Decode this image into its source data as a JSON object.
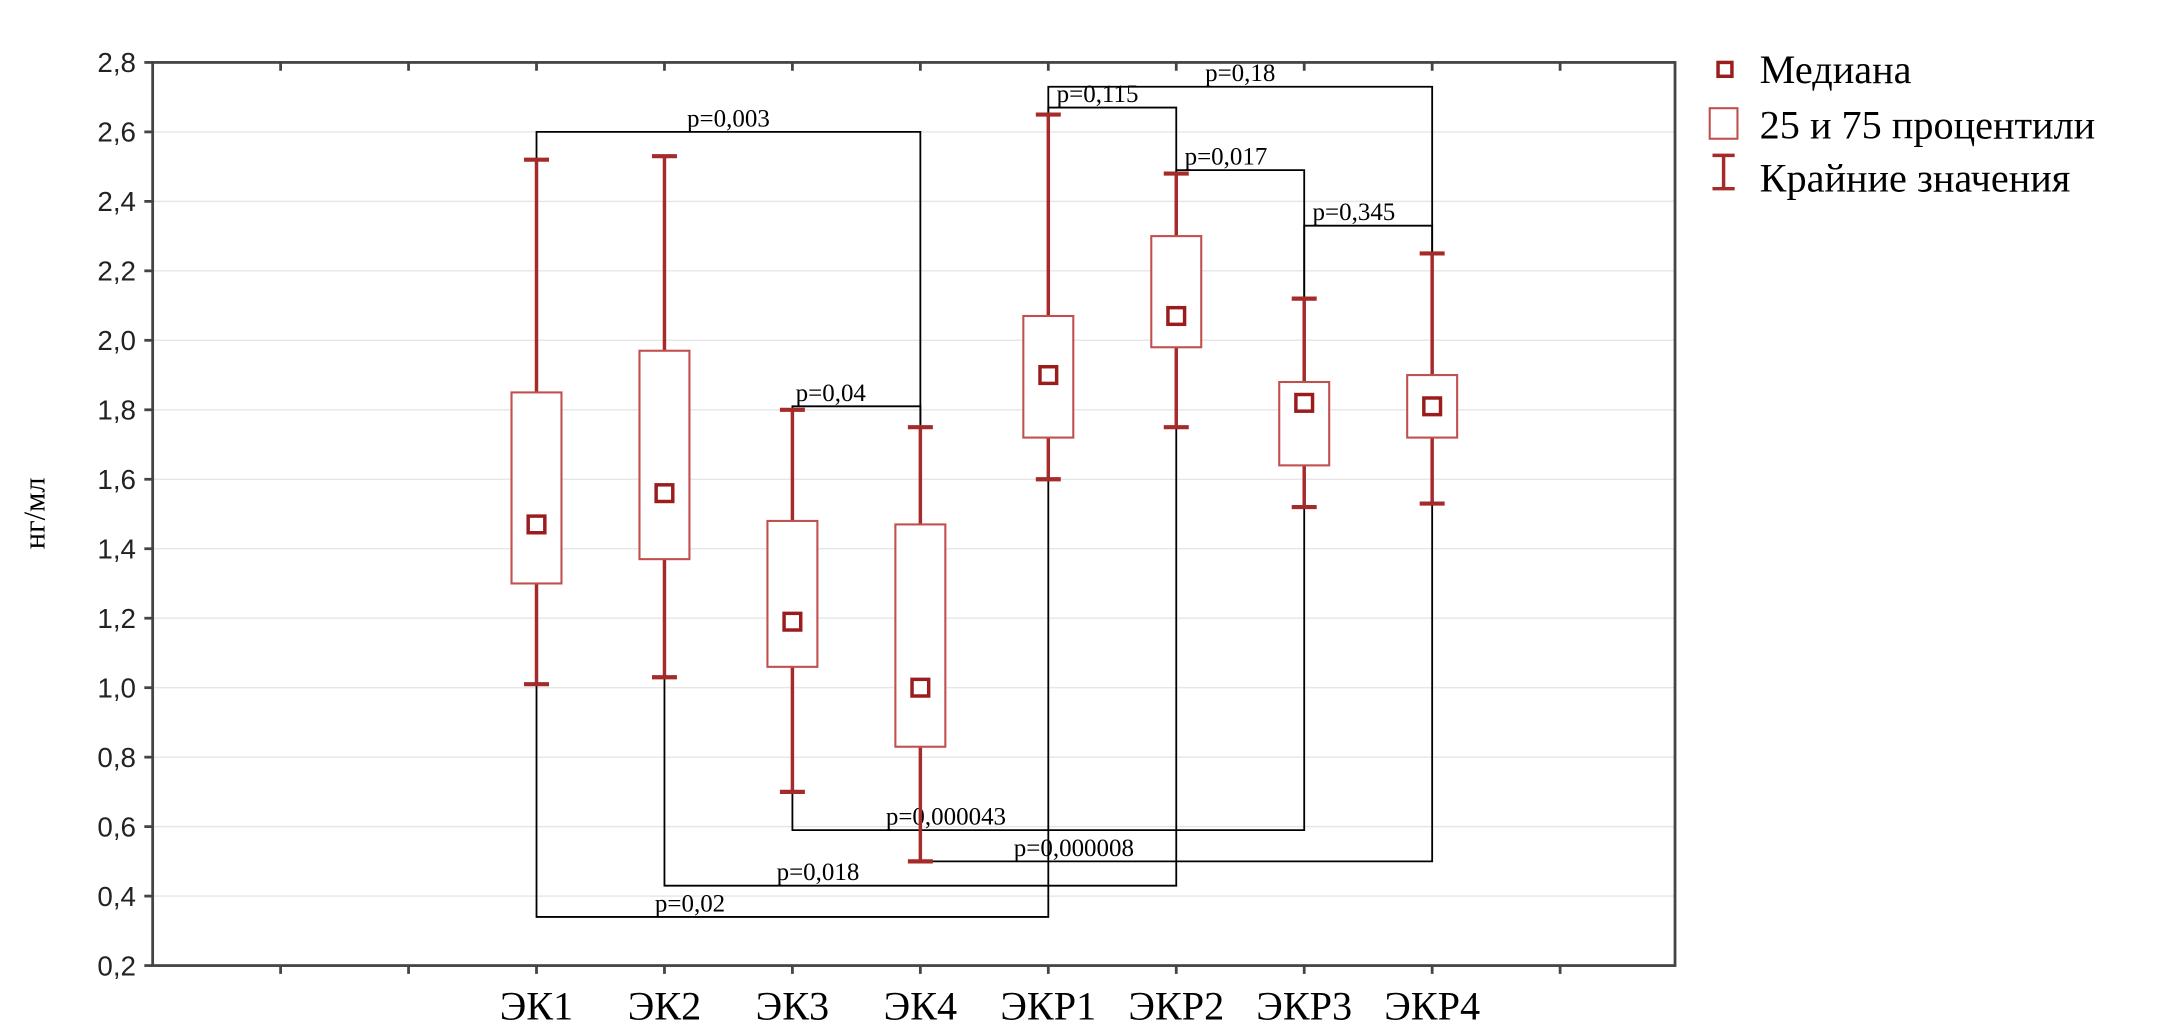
{
  "chart_data": {
    "type": "box",
    "title": "",
    "xlabel": "",
    "ylabel": "нг/мл",
    "ylim": [
      0.2,
      2.8
    ],
    "yticks": [
      "0,2",
      "0,4",
      "0,6",
      "0,8",
      "1,0",
      "1,2",
      "1,4",
      "1,6",
      "1,8",
      "2,0",
      "2,2",
      "2,4",
      "2,6",
      "2,8"
    ],
    "grid": true,
    "legend_position": "top-right",
    "legend": [
      "Медиана",
      "25 и 75 процентили",
      "Крайние значения"
    ],
    "colors": {
      "box": "#c0504d",
      "whisker": "#a52a2a",
      "median": "#9b1c1c",
      "bracket": "#000000",
      "grid": "#e6e6e6"
    },
    "categories": [
      "ЭК1",
      "ЭК2",
      "ЭК3",
      "ЭК4",
      "ЭКР1",
      "ЭКР2",
      "ЭКР3",
      "ЭКР4"
    ],
    "boxes": [
      {
        "min": 1.01,
        "q1": 1.3,
        "median": 1.47,
        "q3": 1.85,
        "max": 2.52
      },
      {
        "min": 1.03,
        "q1": 1.37,
        "median": 1.56,
        "q3": 1.97,
        "max": 2.53
      },
      {
        "min": 0.7,
        "q1": 1.06,
        "median": 1.19,
        "q3": 1.48,
        "max": 1.8
      },
      {
        "min": 0.5,
        "q1": 0.83,
        "median": 1.0,
        "q3": 1.47,
        "max": 1.75
      },
      {
        "min": 1.6,
        "q1": 1.72,
        "median": 1.9,
        "q3": 2.07,
        "max": 2.65
      },
      {
        "min": 1.75,
        "q1": 1.98,
        "median": 2.07,
        "q3": 2.3,
        "max": 2.48
      },
      {
        "min": 1.52,
        "q1": 1.64,
        "median": 1.82,
        "q3": 1.88,
        "max": 2.12
      },
      {
        "min": 1.53,
        "q1": 1.72,
        "median": 1.81,
        "q3": 1.9,
        "max": 2.25
      }
    ],
    "comparisons": [
      {
        "from": "ЭК1",
        "to": "ЭК4",
        "level": 2.6,
        "label": "p=0,003"
      },
      {
        "from": "ЭК3",
        "to": "ЭК4",
        "level": 1.81,
        "label": "p=0,04"
      },
      {
        "from": "ЭКР1",
        "to": "ЭКР2",
        "level": 2.67,
        "label": "p=0,115"
      },
      {
        "from": "ЭКР1",
        "to": "ЭКР4",
        "level": 2.73,
        "label": "p=0,18"
      },
      {
        "from": "ЭКР2",
        "to": "ЭКР3",
        "level": 2.49,
        "label": "p=0,017"
      },
      {
        "from": "ЭКР3",
        "to": "ЭКР4",
        "level": 2.33,
        "label": "p=0,345"
      },
      {
        "from": "ЭК3",
        "to": "ЭКР3",
        "level": 0.59,
        "label": "p=0,000043"
      },
      {
        "from": "ЭК4",
        "to": "ЭКР4",
        "level": 0.5,
        "label": "p=0,000008"
      },
      {
        "from": "ЭК2",
        "to": "ЭКР2",
        "level": 0.43,
        "label": "p=0,018"
      },
      {
        "from": "ЭК1",
        "to": "ЭКР1",
        "level": 0.34,
        "label": "p=0,02"
      }
    ]
  }
}
